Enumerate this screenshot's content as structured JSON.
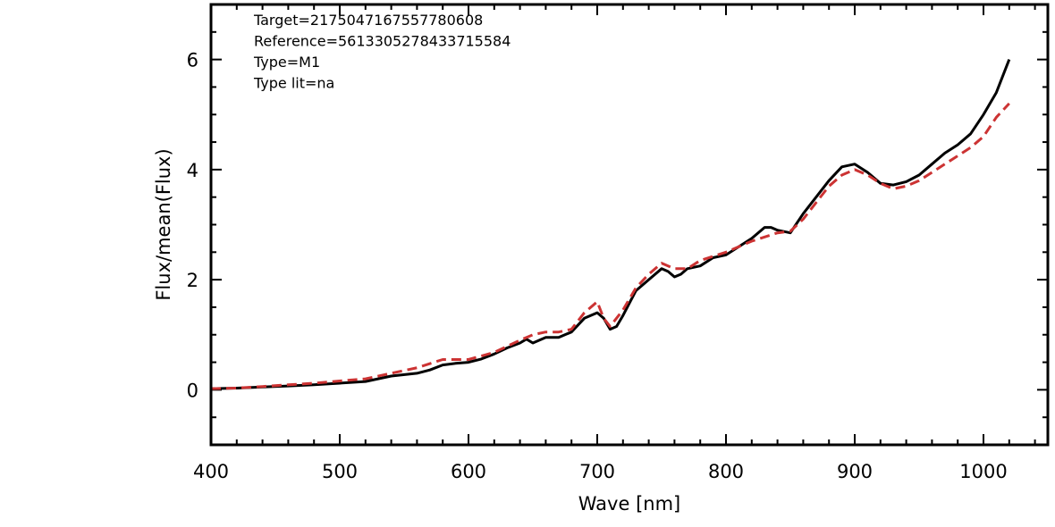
{
  "chart_data": {
    "type": "line",
    "title": "",
    "xlabel": "Wave [nm]",
    "ylabel": "Flux/mean(Flux)",
    "xlim": [
      400,
      1050
    ],
    "ylim": [
      -1,
      7
    ],
    "xticks": [
      400,
      500,
      600,
      700,
      800,
      900,
      1000
    ],
    "yticks": [
      0,
      2,
      4,
      6
    ],
    "x_minor_step": 20,
    "y_minor_step": 0.5,
    "annotations": [
      "Target=2175047167557780608",
      "Reference=5613305278433715584",
      "Type=M1",
      "Type lit=na"
    ],
    "series": [
      {
        "style": "solid",
        "color": "#000000",
        "x": [
          400,
          420,
          440,
          460,
          480,
          500,
          520,
          540,
          560,
          570,
          580,
          590,
          600,
          610,
          620,
          630,
          640,
          645,
          650,
          655,
          660,
          670,
          680,
          690,
          700,
          705,
          710,
          715,
          720,
          730,
          740,
          750,
          755,
          760,
          765,
          770,
          780,
          790,
          800,
          810,
          820,
          830,
          835,
          840,
          850,
          860,
          870,
          880,
          890,
          900,
          910,
          920,
          930,
          940,
          950,
          960,
          970,
          980,
          990,
          1000,
          1010,
          1020
        ],
        "y": [
          0.02,
          0.03,
          0.05,
          0.07,
          0.09,
          0.12,
          0.15,
          0.25,
          0.3,
          0.36,
          0.45,
          0.48,
          0.5,
          0.56,
          0.65,
          0.76,
          0.85,
          0.92,
          0.85,
          0.9,
          0.95,
          0.95,
          1.05,
          1.3,
          1.4,
          1.3,
          1.1,
          1.15,
          1.35,
          1.8,
          2.0,
          2.2,
          2.15,
          2.05,
          2.1,
          2.2,
          2.25,
          2.4,
          2.45,
          2.6,
          2.75,
          2.95,
          2.95,
          2.9,
          2.85,
          3.2,
          3.5,
          3.8,
          4.05,
          4.1,
          3.95,
          3.75,
          3.72,
          3.78,
          3.9,
          4.1,
          4.3,
          4.45,
          4.65,
          5.0,
          5.4,
          6.0
        ]
      },
      {
        "style": "dashed",
        "color": "#cc3333",
        "x": [
          400,
          420,
          440,
          460,
          480,
          500,
          520,
          540,
          560,
          580,
          600,
          620,
          640,
          650,
          660,
          670,
          680,
          690,
          700,
          705,
          710,
          720,
          730,
          740,
          750,
          760,
          770,
          780,
          800,
          820,
          840,
          850,
          860,
          870,
          880,
          890,
          900,
          910,
          920,
          930,
          940,
          950,
          960,
          970,
          980,
          990,
          1000,
          1010,
          1020
        ],
        "y": [
          0.02,
          0.03,
          0.06,
          0.09,
          0.12,
          0.16,
          0.2,
          0.3,
          0.4,
          0.55,
          0.55,
          0.68,
          0.9,
          1.0,
          1.05,
          1.05,
          1.1,
          1.4,
          1.6,
          1.3,
          1.15,
          1.45,
          1.85,
          2.1,
          2.3,
          2.2,
          2.2,
          2.35,
          2.5,
          2.7,
          2.85,
          2.88,
          3.1,
          3.4,
          3.7,
          3.9,
          4.0,
          3.9,
          3.75,
          3.65,
          3.7,
          3.8,
          3.95,
          4.1,
          4.25,
          4.4,
          4.6,
          4.95,
          5.2
        ]
      }
    ]
  }
}
